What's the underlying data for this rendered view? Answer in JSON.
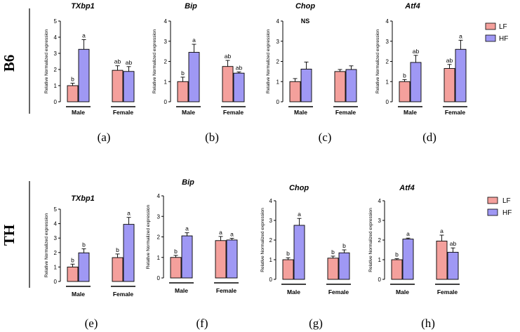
{
  "rows": [
    {
      "label": "B6"
    },
    {
      "label": "TH"
    }
  ],
  "legend": {
    "series": [
      {
        "name": "LF",
        "color": "#f4a09c"
      },
      {
        "name": "HF",
        "color": "#9f98f4"
      }
    ]
  },
  "colors": {
    "LF": "#f4a09c",
    "HF": "#9f98f4",
    "axis": "#000000"
  },
  "chart_data": [
    {
      "type": "bar",
      "panel": "(a)",
      "title": "TXbp1",
      "ylabel": "Relative Normalized expression",
      "ylim": [
        0,
        5
      ],
      "yticks": [
        0,
        1,
        2,
        3,
        4,
        5
      ],
      "groups": [
        "Male",
        "Female"
      ],
      "series": [
        {
          "name": "LF",
          "values": [
            1.0,
            1.95
          ],
          "errors": [
            0.15,
            0.28
          ],
          "labels": [
            "b",
            "ab"
          ]
        },
        {
          "name": "HF",
          "values": [
            3.25,
            1.88
          ],
          "errors": [
            0.6,
            0.3
          ],
          "labels": [
            "a",
            "ab"
          ]
        }
      ]
    },
    {
      "type": "bar",
      "panel": "(b)",
      "title": "Bip",
      "ylabel": "Relative Normalized expression",
      "ylim": [
        0,
        4
      ],
      "yticks": [
        0,
        1,
        2,
        3,
        4
      ],
      "groups": [
        "Male",
        "Female"
      ],
      "series": [
        {
          "name": "LF",
          "values": [
            1.0,
            1.75
          ],
          "errors": [
            0.22,
            0.3
          ],
          "labels": [
            "b",
            "ab"
          ]
        },
        {
          "name": "HF",
          "values": [
            2.45,
            1.42
          ],
          "errors": [
            0.4,
            0.06
          ],
          "labels": [
            "a",
            "ab"
          ]
        }
      ]
    },
    {
      "type": "bar",
      "panel": "(c)",
      "title": "Chop",
      "annotation": "NS",
      "ylabel": "Relative Normalized expression",
      "ylim": [
        0,
        4
      ],
      "yticks": [
        0,
        1,
        2,
        3,
        4
      ],
      "groups": [
        "Male",
        "Female"
      ],
      "series": [
        {
          "name": "LF",
          "values": [
            1.0,
            1.5
          ],
          "errors": [
            0.15,
            0.1
          ],
          "labels": [
            "",
            ""
          ]
        },
        {
          "name": "HF",
          "values": [
            1.62,
            1.6
          ],
          "errors": [
            0.35,
            0.18
          ],
          "labels": [
            "",
            ""
          ]
        }
      ]
    },
    {
      "type": "bar",
      "panel": "(d)",
      "title": "Atf4",
      "ylabel": "Relative Normalized expression",
      "ylim": [
        0,
        4
      ],
      "yticks": [
        0,
        1,
        2,
        3,
        4
      ],
      "groups": [
        "Male",
        "Female"
      ],
      "series": [
        {
          "name": "LF",
          "values": [
            1.0,
            1.65
          ],
          "errors": [
            0.1,
            0.2
          ],
          "labels": [
            "b",
            "ab"
          ]
        },
        {
          "name": "HF",
          "values": [
            1.95,
            2.6
          ],
          "errors": [
            0.35,
            0.45
          ],
          "labels": [
            "ab",
            "a"
          ]
        }
      ]
    },
    {
      "type": "bar",
      "panel": "(e)",
      "title": "TXbp1",
      "ylabel": "Relative Normalized expression",
      "ylim": [
        0,
        5
      ],
      "yticks": [
        0,
        1,
        2,
        3,
        4,
        5
      ],
      "groups": [
        "Male",
        "Female"
      ],
      "series": [
        {
          "name": "LF",
          "values": [
            1.0,
            1.65
          ],
          "errors": [
            0.2,
            0.25
          ],
          "labels": [
            "b",
            "b"
          ]
        },
        {
          "name": "HF",
          "values": [
            1.98,
            3.95
          ],
          "errors": [
            0.28,
            0.48
          ],
          "labels": [
            "b",
            "a"
          ]
        }
      ]
    },
    {
      "type": "bar",
      "panel": "(f)",
      "title": "Bip",
      "ylabel": "Relative Normalized expression",
      "ylim": [
        0,
        4
      ],
      "yticks": [
        0,
        1,
        2,
        3,
        4
      ],
      "groups": [
        "Male",
        "Female"
      ],
      "series": [
        {
          "name": "LF",
          "values": [
            1.0,
            1.82
          ],
          "errors": [
            0.1,
            0.2
          ],
          "labels": [
            "b",
            "a"
          ]
        },
        {
          "name": "HF",
          "values": [
            2.05,
            1.85
          ],
          "errors": [
            0.15,
            0.08
          ],
          "labels": [
            "a",
            "a"
          ]
        }
      ]
    },
    {
      "type": "bar",
      "panel": "(g)",
      "title": "Chop",
      "ylabel": "Relative Normalized expression",
      "ylim": [
        0,
        4
      ],
      "yticks": [
        0,
        1,
        2,
        3,
        4
      ],
      "groups": [
        "Male",
        "Female"
      ],
      "series": [
        {
          "name": "LF",
          "values": [
            1.0,
            1.08
          ],
          "errors": [
            0.1,
            0.1
          ],
          "labels": [
            "b",
            "b"
          ]
        },
        {
          "name": "HF",
          "values": [
            2.75,
            1.35
          ],
          "errors": [
            0.35,
            0.15
          ],
          "labels": [
            "a",
            "b"
          ]
        }
      ]
    },
    {
      "type": "bar",
      "panel": "(h)",
      "title": "Atf4",
      "ylabel": "Relative Normalized expression",
      "ylim": [
        0,
        4
      ],
      "yticks": [
        0,
        1,
        2,
        3,
        4
      ],
      "groups": [
        "Male",
        "Female"
      ],
      "series": [
        {
          "name": "LF",
          "values": [
            1.0,
            1.95
          ],
          "errors": [
            0.05,
            0.3
          ],
          "labels": [
            "b",
            "a"
          ]
        },
        {
          "name": "HF",
          "values": [
            2.05,
            1.38
          ],
          "errors": [
            0.05,
            0.22
          ],
          "labels": [
            "a",
            "ab"
          ]
        }
      ]
    }
  ]
}
